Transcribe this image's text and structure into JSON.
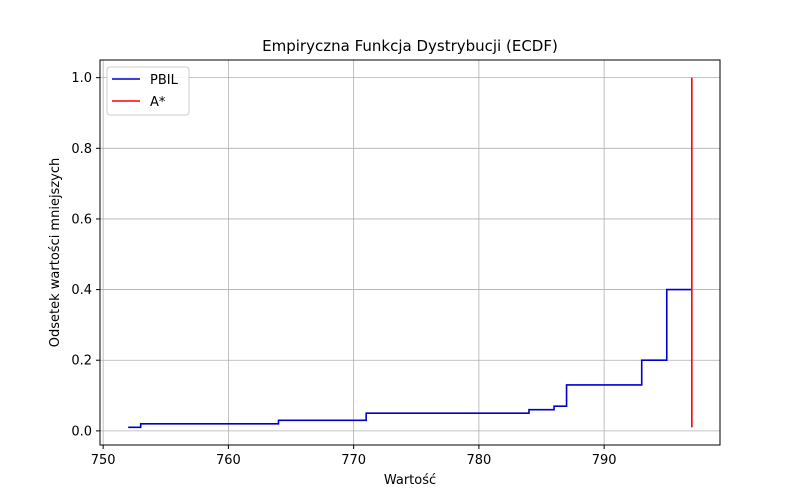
{
  "chart_data": {
    "type": "line",
    "title": "Empiryczna Funkcja Dystrybucji (ECDF)",
    "xlabel": "Wartość",
    "ylabel": "Odsetek wartości mniejszych",
    "xlim": [
      749.75,
      799.25
    ],
    "ylim": [
      -0.04,
      1.05
    ],
    "xticks": [
      750,
      760,
      770,
      780,
      790
    ],
    "xtick_labels": [
      "750",
      "760",
      "770",
      "780",
      "790"
    ],
    "yticks": [
      0.0,
      0.2,
      0.4,
      0.6,
      0.8,
      1.0
    ],
    "ytick_labels": [
      "0.0",
      "0.2",
      "0.4",
      "0.6",
      "0.8",
      "1.0"
    ],
    "grid": true,
    "legend_position": "top-left",
    "series": [
      {
        "name": "PBIL",
        "color": "#0000cc",
        "step": "post",
        "points": [
          {
            "x": 752,
            "y": 0.01
          },
          {
            "x": 753,
            "y": 0.02
          },
          {
            "x": 764,
            "y": 0.03
          },
          {
            "x": 771,
            "y": 0.05
          },
          {
            "x": 784,
            "y": 0.06
          },
          {
            "x": 786,
            "y": 0.07
          },
          {
            "x": 787,
            "y": 0.13
          },
          {
            "x": 793,
            "y": 0.2
          },
          {
            "x": 795,
            "y": 0.4
          },
          {
            "x": 797,
            "y": 0.4
          }
        ]
      },
      {
        "name": "A*",
        "color": "#ff0000",
        "step": "none",
        "points": [
          {
            "x": 797,
            "y": 0.01
          },
          {
            "x": 797,
            "y": 1.0
          }
        ]
      }
    ]
  }
}
